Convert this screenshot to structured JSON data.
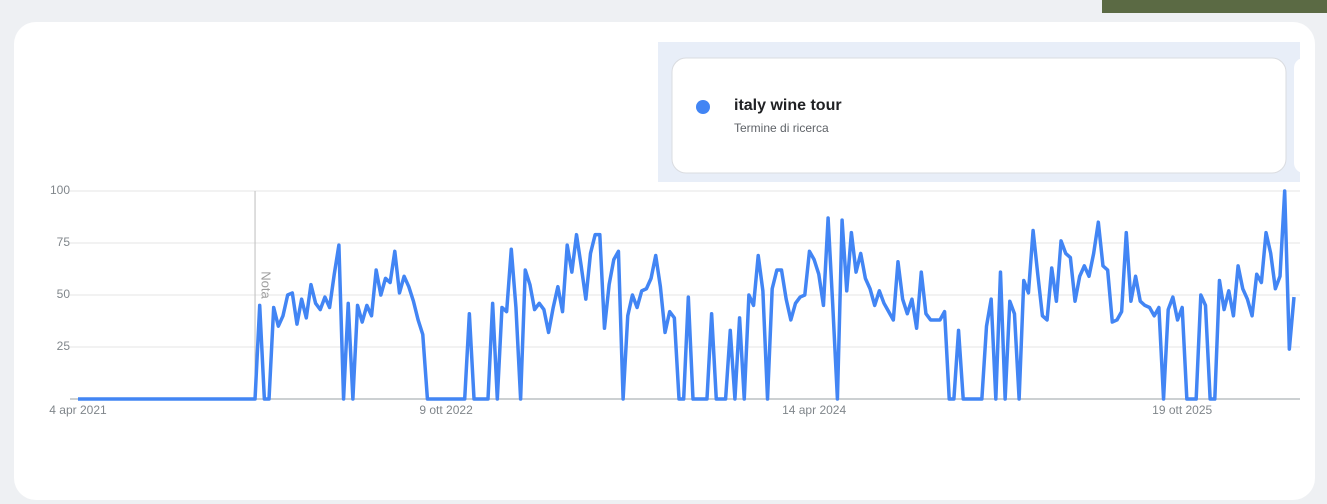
{
  "chart_data": {
    "type": "line",
    "series": [
      {
        "name": "italy wine tour",
        "color": "#4285f4",
        "values": [
          0,
          0,
          0,
          0,
          0,
          0,
          0,
          0,
          0,
          0,
          0,
          0,
          0,
          0,
          0,
          0,
          0,
          0,
          0,
          0,
          0,
          0,
          0,
          0,
          0,
          0,
          0,
          0,
          0,
          0,
          0,
          0,
          0,
          0,
          0,
          0,
          0,
          0,
          0,
          45,
          0,
          0,
          44,
          35,
          40,
          50,
          51,
          36,
          48,
          39,
          55,
          46,
          43,
          49,
          44,
          60,
          74,
          0,
          46,
          0,
          45,
          37,
          45,
          40,
          62,
          50,
          58,
          56,
          71,
          51,
          59,
          54,
          47,
          38,
          31,
          0,
          0,
          0,
          0,
          0,
          0,
          0,
          0,
          0,
          41,
          0,
          0,
          0,
          0,
          46,
          0,
          44,
          42,
          72,
          44,
          0,
          62,
          55,
          43,
          46,
          43,
          32,
          44,
          54,
          42,
          74,
          61,
          79,
          64,
          48,
          70,
          79,
          79,
          34,
          55,
          67,
          71,
          0,
          40,
          50,
          44,
          52,
          53,
          58,
          69,
          54,
          32,
          42,
          39,
          0,
          0,
          49,
          0,
          0,
          0,
          0,
          41,
          0,
          0,
          0,
          33,
          0,
          39,
          0,
          50,
          45,
          69,
          52,
          0,
          53,
          62,
          62,
          48,
          38,
          46,
          49,
          50,
          71,
          67,
          60,
          45,
          87,
          45,
          0,
          86,
          52,
          80,
          61,
          70,
          58,
          53,
          45,
          52,
          46,
          42,
          38,
          66,
          48,
          41,
          48,
          34,
          61,
          41,
          38,
          38,
          38,
          42,
          0,
          0,
          33,
          0,
          0,
          0,
          0,
          0,
          35,
          48,
          0,
          61,
          0,
          47,
          41,
          0,
          57,
          51,
          81,
          60,
          40,
          38,
          63,
          47,
          76,
          70,
          68,
          47,
          59,
          64,
          59,
          70,
          85,
          64,
          62,
          37,
          38,
          42,
          80,
          47,
          59,
          47,
          45,
          44,
          40,
          44,
          0,
          43,
          49,
          38,
          44,
          0,
          0,
          0,
          50,
          45,
          0,
          0,
          57,
          43,
          52,
          40,
          64,
          53,
          48,
          40,
          60,
          56,
          80,
          70,
          53,
          59,
          100,
          24,
          49
        ]
      }
    ],
    "categories": [
      "4 apr 2021",
      null,
      null,
      null,
      null,
      null,
      null,
      null,
      null,
      null,
      null,
      null,
      null,
      null,
      null,
      null,
      null,
      null,
      null,
      null,
      null,
      null,
      null,
      null,
      null,
      null,
      null,
      null,
      null,
      null,
      null,
      null,
      null,
      null,
      null,
      null,
      null,
      null,
      null,
      null,
      null,
      null,
      null,
      null,
      null,
      null,
      null,
      null,
      null,
      null,
      null,
      null,
      null,
      null,
      null,
      null,
      null,
      null,
      null,
      null,
      null,
      null,
      null,
      null,
      null,
      null,
      null,
      null,
      null,
      null,
      null,
      null,
      null,
      null,
      null,
      null,
      null,
      null,
      null,
      "9 ott 2022",
      null,
      null,
      null,
      null,
      null,
      null,
      null,
      null,
      null,
      null,
      null,
      null,
      null,
      null,
      null,
      null,
      null,
      null,
      null,
      null,
      null,
      null,
      null,
      null,
      null,
      null,
      null,
      null,
      null,
      null,
      null,
      null,
      null,
      null,
      null,
      null,
      null,
      null,
      null,
      null,
      null,
      null,
      null,
      null,
      null,
      null,
      null,
      null,
      null,
      null,
      null,
      null,
      null,
      null,
      null,
      null,
      null,
      null,
      null,
      null,
      null,
      null,
      null,
      null,
      null,
      null,
      null,
      null,
      null,
      null,
      null,
      null,
      null,
      null,
      null,
      null,
      null,
      null,
      "14 apr 2024",
      null,
      null,
      null,
      null,
      null,
      null,
      null,
      null,
      null,
      null,
      null,
      null,
      null,
      null,
      null,
      null,
      null,
      null,
      null,
      null,
      null,
      null,
      null,
      null,
      null,
      null,
      null,
      null,
      null,
      null,
      null,
      null,
      null,
      null,
      null,
      null,
      null,
      null,
      null,
      null,
      null,
      null,
      null,
      null,
      null,
      null,
      null,
      null,
      null,
      null,
      null,
      null,
      null,
      null,
      null,
      null,
      null,
      null,
      null,
      null,
      null,
      null,
      null,
      null,
      null,
      null,
      null,
      null,
      null,
      null,
      null,
      null,
      null,
      null,
      null,
      null,
      null,
      null,
      "19 ott 2025",
      null,
      null,
      null,
      null,
      null,
      null,
      null,
      null,
      null,
      null,
      null,
      null,
      null,
      null,
      null,
      null,
      null,
      null,
      null,
      null,
      null,
      null,
      null,
      null
    ],
    "legend_subtitle": "Termine di ricerca",
    "annotation": "Nota",
    "ylim": [
      0,
      100
    ],
    "yticks": [
      25,
      50,
      75,
      100
    ],
    "grid": true
  }
}
